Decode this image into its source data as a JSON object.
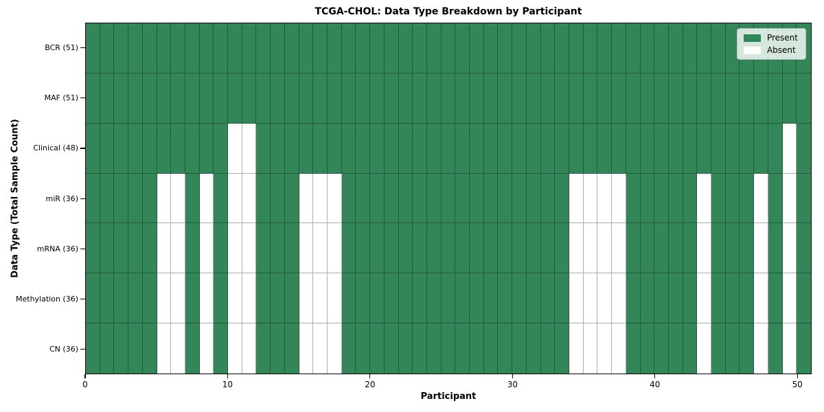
{
  "chart_data": {
    "type": "heatmap",
    "title": "TCGA-CHOL: Data Type Breakdown by Participant",
    "xlabel": "Participant",
    "ylabel": "Data Type (Total Sample Count)",
    "n_participants": 51,
    "xlim": [
      0,
      51
    ],
    "x_ticks": [
      0,
      10,
      20,
      30,
      40,
      50
    ],
    "grid": true,
    "legend_position": "upper right",
    "rows": [
      {
        "label": "BCR (51)",
        "data_type": "BCR",
        "total_count": 51,
        "absent_participants": []
      },
      {
        "label": "MAF (51)",
        "data_type": "MAF",
        "total_count": 51,
        "absent_participants": []
      },
      {
        "label": "Clinical (48)",
        "data_type": "Clinical",
        "total_count": 48,
        "absent_participants": [
          10,
          11,
          49
        ]
      },
      {
        "label": "miR (36)",
        "data_type": "miR",
        "total_count": 36,
        "absent_participants": [
          5,
          6,
          8,
          10,
          11,
          15,
          16,
          17,
          34,
          35,
          36,
          37,
          43,
          47,
          49
        ]
      },
      {
        "label": "mRNA (36)",
        "data_type": "mRNA",
        "total_count": 36,
        "absent_participants": [
          5,
          6,
          8,
          10,
          11,
          15,
          16,
          17,
          34,
          35,
          36,
          37,
          43,
          47,
          49
        ]
      },
      {
        "label": "Methylation (36)",
        "data_type": "Methylation",
        "total_count": 36,
        "absent_participants": [
          5,
          6,
          8,
          10,
          11,
          15,
          16,
          17,
          34,
          35,
          36,
          37,
          43,
          47,
          49
        ]
      },
      {
        "label": "CN (36)",
        "data_type": "CN",
        "total_count": 36,
        "absent_participants": [
          5,
          6,
          8,
          10,
          11,
          15,
          16,
          17,
          34,
          35,
          36,
          37,
          43,
          47,
          49
        ]
      }
    ],
    "legend": [
      {
        "label": "Present",
        "color": "#338658"
      },
      {
        "label": "Absent",
        "color": "#ffffff"
      }
    ],
    "colors": {
      "present": "#338658",
      "absent": "#ffffff",
      "grid_line": "rgba(0,0,0,0.32)",
      "frame": "#000000",
      "legend_border": "#bfbfbf"
    }
  }
}
